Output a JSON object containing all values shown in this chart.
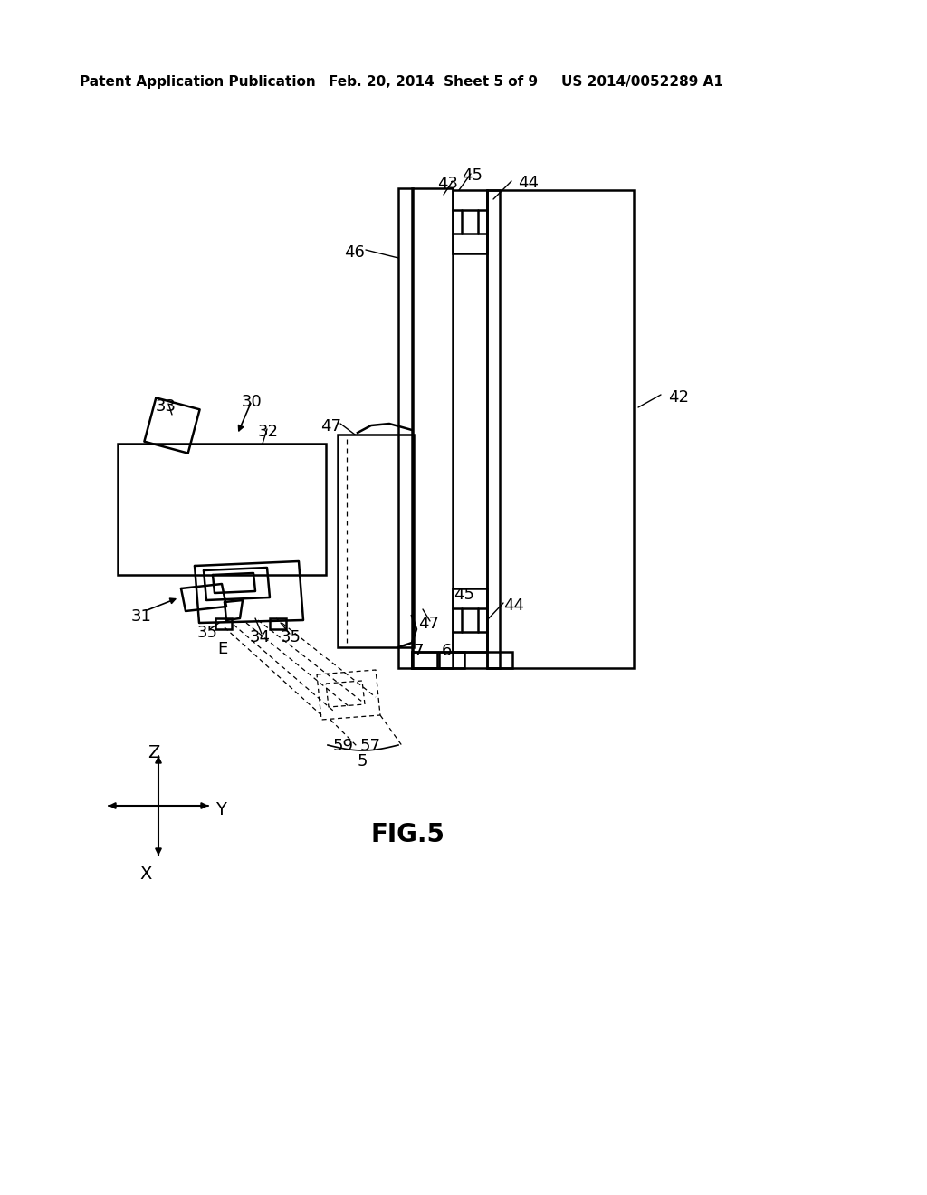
{
  "bg_color": "#ffffff",
  "line_color": "#000000",
  "header_left": "Patent Application Publication",
  "header_mid": "Feb. 20, 2014  Sheet 5 of 9",
  "header_right": "US 2014/0052289 A1",
  "figure_label": "FIG.5",
  "header_fontsize": 11,
  "label_fontsize": 13,
  "fig_label_fontsize": 20
}
